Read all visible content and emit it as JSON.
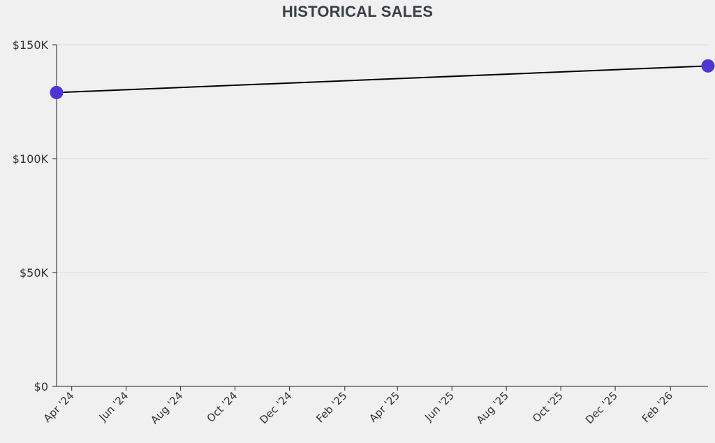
{
  "chart_data": {
    "type": "line",
    "title": "HISTORICAL SALES",
    "xlabel": "",
    "ylabel": "",
    "x_range": [
      "2024-03-15",
      "2026-03-15"
    ],
    "ylim": [
      0,
      150000
    ],
    "grid": true,
    "y_ticks": [
      {
        "value": 0,
        "label": "$0"
      },
      {
        "value": 50000,
        "label": "$50K"
      },
      {
        "value": 100000,
        "label": "$100K"
      },
      {
        "value": 150000,
        "label": "$150K"
      }
    ],
    "x_ticks": [
      {
        "date": "2024-04-01",
        "label": "Apr '24"
      },
      {
        "date": "2024-06-01",
        "label": "Jun '24"
      },
      {
        "date": "2024-08-01",
        "label": "Aug '24"
      },
      {
        "date": "2024-10-01",
        "label": "Oct '24"
      },
      {
        "date": "2024-12-01",
        "label": "Dec '24"
      },
      {
        "date": "2025-02-01",
        "label": "Feb '25"
      },
      {
        "date": "2025-04-01",
        "label": "Apr '25"
      },
      {
        "date": "2025-06-01",
        "label": "Jun '25"
      },
      {
        "date": "2025-08-01",
        "label": "Aug '25"
      },
      {
        "date": "2025-10-01",
        "label": "Oct '25"
      },
      {
        "date": "2025-12-01",
        "label": "Dec '25"
      },
      {
        "date": "2026-02-01",
        "label": "Feb '26"
      }
    ],
    "series": [
      {
        "points": [
          {
            "x": "2024-03-15",
            "y": 129000
          },
          {
            "x": "2026-03-15",
            "y": 140700
          }
        ]
      }
    ],
    "colors": {
      "line": "#000000",
      "point": "#4f35d6",
      "background": "#f0f0f0"
    }
  }
}
